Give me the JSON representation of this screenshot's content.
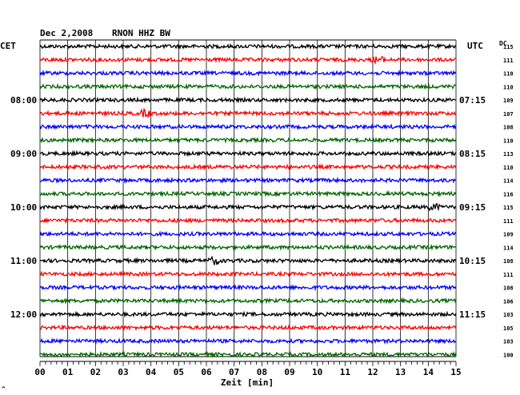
{
  "header": {
    "date": "Dec 2,2008",
    "station": "RNON HHZ BW"
  },
  "left_axis": {
    "label": "CET",
    "hour_labels": [
      "08:00",
      "09:00",
      "10:00",
      "11:00",
      "12:00"
    ]
  },
  "right_axis": {
    "label": "UTC",
    "hour_labels": [
      "07:15",
      "08:15",
      "09:15",
      "10:15",
      "11:15"
    ]
  },
  "dc_label": "DC",
  "dc_values": [
    "115",
    "111",
    "110",
    "110",
    "109",
    "107",
    "108",
    "110",
    "113",
    "110",
    "114",
    "116",
    "115",
    "111",
    "109",
    "114",
    "108",
    "111",
    "108",
    "106",
    "103",
    "105",
    "103",
    "100"
  ],
  "x_axis": {
    "label": "Zeit [min]",
    "ticks": [
      "00",
      "01",
      "02",
      "03",
      "04",
      "05",
      "06",
      "07",
      "08",
      "09",
      "10",
      "11",
      "12",
      "13",
      "14",
      "15"
    ],
    "range": [
      0,
      15
    ]
  },
  "corner_mark": "^",
  "chart_data": {
    "type": "line",
    "title": "Dec 2,2008 RNON HHZ BW",
    "xlabel": "Zeit [min]",
    "xlim": [
      0,
      15
    ],
    "trace_count": 24,
    "minutes_per_trace": 15,
    "color_cycle": [
      "#000000",
      "#ff0000",
      "#0000ff",
      "#006600"
    ],
    "grid": "vertical lines every minute",
    "events": [
      {
        "trace": 1,
        "minute": 12.2
      },
      {
        "trace": 5,
        "minute": 3.8
      },
      {
        "trace": 12,
        "minute": 14.2
      },
      {
        "trace": 16,
        "minute": 6.3
      }
    ]
  }
}
